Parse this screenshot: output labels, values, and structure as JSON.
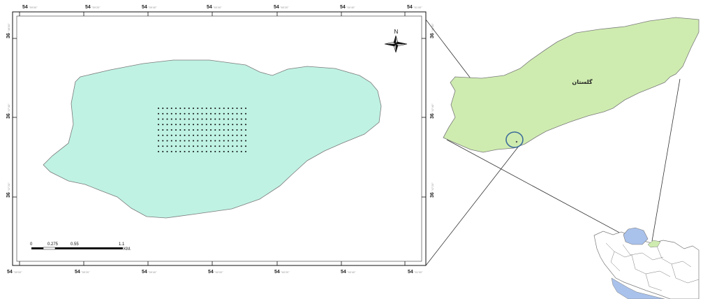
{
  "map_frame": {
    "top_coords": [
      {
        "main": "54",
        "sub": "°59'00\""
      },
      {
        "main": "54",
        "sub": "°59'20\""
      },
      {
        "main": "54",
        "sub": "°59'40\""
      },
      {
        "main": "54",
        "sub": "°60'00\""
      },
      {
        "main": "54",
        "sub": "°60'20\""
      },
      {
        "main": "54",
        "sub": "°60'40\""
      },
      {
        "main": "54",
        "sub": "°61'00\""
      }
    ],
    "bottom_coords": [
      {
        "main": "54",
        "sub": "°59'00\""
      },
      {
        "main": "54",
        "sub": "°59'20\""
      },
      {
        "main": "54",
        "sub": "°59'40\""
      },
      {
        "main": "54",
        "sub": "°60'00\""
      },
      {
        "main": "54",
        "sub": "°60'20\""
      },
      {
        "main": "54",
        "sub": "°60'40\""
      },
      {
        "main": "54",
        "sub": "°61'00\""
      }
    ],
    "left_coords": [
      {
        "main": "36",
        "sub": "°48'00\""
      },
      {
        "main": "36",
        "sub": "°47'40\""
      },
      {
        "main": "36",
        "sub": "°47'20\""
      }
    ],
    "right_coords": [
      {
        "main": "36",
        "sub": "°48'00\""
      },
      {
        "main": "36",
        "sub": "°47'40\""
      },
      {
        "main": "36",
        "sub": "°47'20\""
      }
    ]
  },
  "north_arrow": {
    "label": "N"
  },
  "scale_bar": {
    "ticks": [
      "0",
      "0.275",
      "0.55",
      "1.1"
    ],
    "unit": "KM."
  },
  "province": {
    "label": "گلستان"
  },
  "sampling_grid": {
    "columns": 21,
    "rows": 9
  },
  "colors": {
    "study_area_fill": "#bff2e3",
    "province_fill": "#cfecb0",
    "caspian_fill": "#a9c2ec",
    "outline": "#7a7a7a",
    "highlight_circle": "#3d6c9a",
    "sample_point": "#111111"
  }
}
